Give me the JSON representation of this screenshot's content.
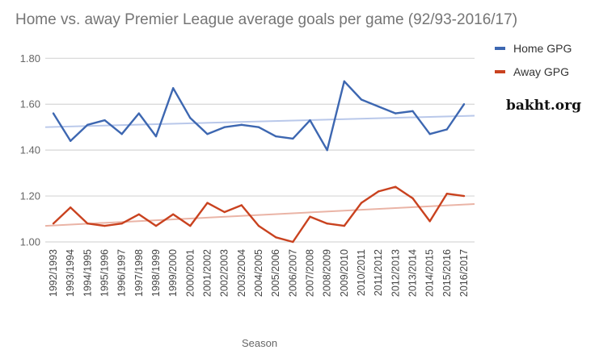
{
  "chart_data": {
    "type": "line",
    "title": "Home vs. away Premier League average goals per game (92/93-2016/17)",
    "xlabel": "Season",
    "ylabel": "",
    "ylim": [
      1.0,
      1.8
    ],
    "yticks": [
      "1.00",
      "1.20",
      "1.40",
      "1.60",
      "1.80"
    ],
    "grid": true,
    "legend_position": "right",
    "categories": [
      "1992/1993",
      "1993/1994",
      "1994/1995",
      "1995/1996",
      "1996/1997",
      "1997/1998",
      "1998/1999",
      "1999/2000",
      "2000/2001",
      "2001/2002",
      "2002/2003",
      "2003/2004",
      "2004/2005",
      "2005/2006",
      "2006/2007",
      "2007/2008",
      "2008/2009",
      "2009/2010",
      "2010/2011",
      "2011/2012",
      "2012/2013",
      "2013/2014",
      "2014/2015",
      "2015/2016",
      "2016/2017"
    ],
    "series": [
      {
        "name": "Home GPG",
        "color": "#3d67b1",
        "trend_color": "#b9c8ea",
        "trendline": [
          1.5,
          1.55
        ],
        "values": [
          1.56,
          1.44,
          1.51,
          1.53,
          1.47,
          1.56,
          1.46,
          1.67,
          1.54,
          1.47,
          1.5,
          1.51,
          1.5,
          1.46,
          1.45,
          1.53,
          1.4,
          1.7,
          1.62,
          1.59,
          1.56,
          1.57,
          1.47,
          1.49,
          1.6
        ]
      },
      {
        "name": "Away GPG",
        "color": "#c9421f",
        "trend_color": "#eab4a6",
        "trendline": [
          1.07,
          1.165
        ],
        "values": [
          1.08,
          1.15,
          1.08,
          1.07,
          1.08,
          1.12,
          1.07,
          1.12,
          1.07,
          1.17,
          1.13,
          1.16,
          1.07,
          1.02,
          1.0,
          1.11,
          1.08,
          1.07,
          1.17,
          1.22,
          1.24,
          1.19,
          1.09,
          1.21,
          1.2
        ]
      }
    ]
  },
  "watermark": "bakht.org"
}
